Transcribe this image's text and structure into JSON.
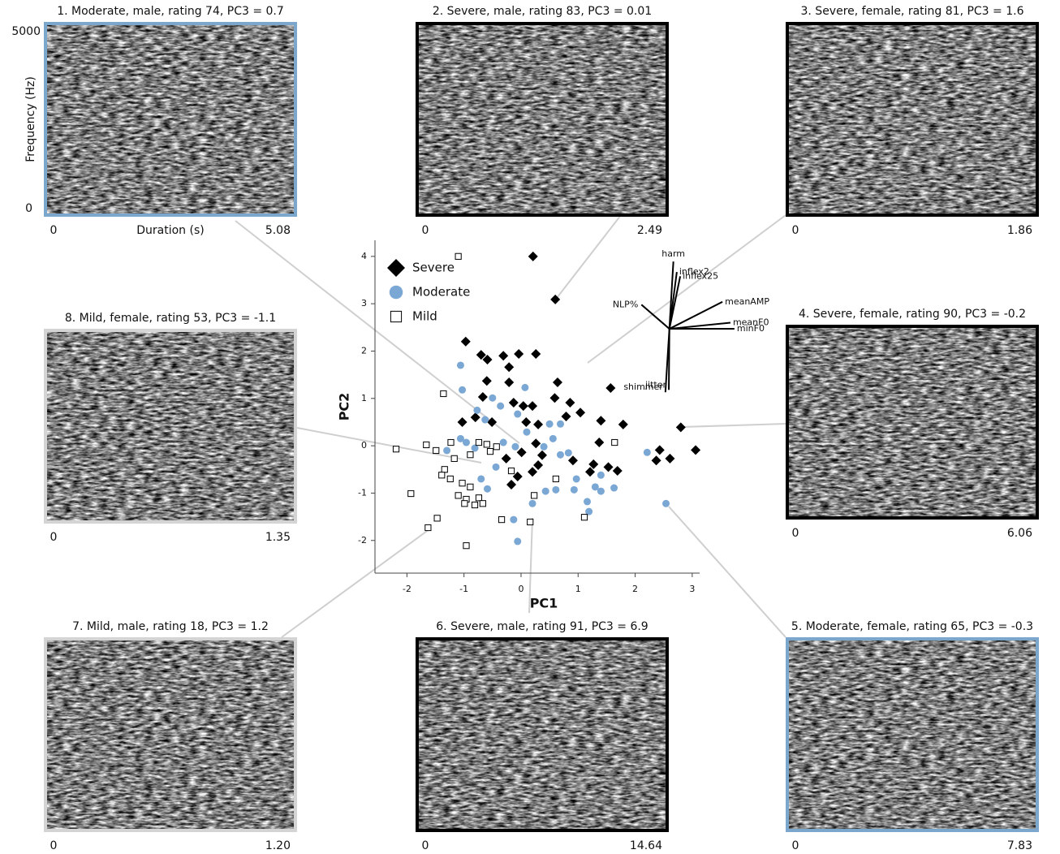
{
  "chart_data": {
    "type": "scatter",
    "xlabel": "PC1",
    "ylabel": "PC2",
    "xlim": [
      -2.56,
      3.13
    ],
    "ylim": [
      -2.69,
      4.34
    ],
    "xticks": [
      -2,
      -1,
      0,
      1,
      2,
      3
    ],
    "yticks": [
      -2,
      -1,
      0,
      1,
      2,
      3,
      4
    ],
    "legend": "upper left",
    "series": [
      {
        "name": "Severe",
        "color": "#000000",
        "marker": "diamond",
        "x": [
          0.21,
          0.6,
          -0.97,
          -0.7,
          -0.59,
          -0.31,
          -0.04,
          0.26,
          -0.21,
          -0.6,
          -0.21,
          0.64,
          -0.67,
          -0.13,
          0.04,
          0.2,
          0.59,
          0.86,
          1.57,
          1.04,
          0.79,
          -1.03,
          -0.8,
          -0.51,
          0.09,
          0.3,
          1.4,
          1.79,
          2.8,
          1.37,
          0.26,
          0.01,
          0.37,
          -0.26,
          0.91,
          1.27,
          1.53,
          1.69,
          1.21,
          0.3,
          0.2,
          -0.06,
          -0.17,
          2.43,
          2.37,
          2.61,
          3.06
        ],
        "y": [
          4.0,
          3.09,
          2.2,
          1.92,
          1.82,
          1.9,
          1.94,
          1.94,
          1.66,
          1.37,
          1.34,
          1.34,
          1.03,
          0.91,
          0.84,
          0.84,
          1.01,
          0.91,
          1.22,
          0.7,
          0.62,
          0.5,
          0.6,
          0.5,
          0.5,
          0.45,
          0.53,
          0.45,
          0.39,
          0.07,
          0.05,
          -0.14,
          -0.2,
          -0.27,
          -0.31,
          -0.39,
          -0.45,
          -0.53,
          -0.55,
          -0.41,
          -0.55,
          -0.65,
          -0.82,
          -0.09,
          -0.31,
          -0.27,
          -0.09
        ]
      },
      {
        "name": "Moderate",
        "color": "#7ba7d4",
        "marker": "circle",
        "x": [
          -1.06,
          -1.03,
          0.07,
          -0.5,
          -0.36,
          -0.06,
          -0.77,
          -0.63,
          -0.96,
          -1.3,
          -1.06,
          -0.81,
          -0.31,
          -0.1,
          0.5,
          0.69,
          0.56,
          0.69,
          0.4,
          0.83,
          1.4,
          1.63,
          1.4,
          1.3,
          0.97,
          0.93,
          1.16,
          1.19,
          0.61,
          0.43,
          0.2,
          -0.13,
          -0.06,
          -0.59,
          -0.7,
          -0.44,
          2.21,
          2.54,
          0.1
        ],
        "y": [
          1.7,
          1.18,
          1.23,
          1.01,
          0.84,
          0.67,
          0.75,
          0.55,
          0.07,
          -0.1,
          0.15,
          -0.05,
          0.07,
          -0.02,
          0.46,
          0.46,
          0.15,
          -0.19,
          -0.02,
          -0.15,
          -0.62,
          -0.89,
          -0.96,
          -0.87,
          -0.7,
          -0.93,
          -1.18,
          -1.39,
          -0.93,
          -0.96,
          -1.22,
          -1.56,
          -2.02,
          -0.91,
          -0.7,
          -0.45,
          -0.14,
          -1.22,
          0.29
        ]
      },
      {
        "name": "Mild",
        "color": "#000000",
        "marker": "square",
        "x": [
          -1.1,
          -1.36,
          -2.19,
          -1.66,
          -1.49,
          -1.23,
          -0.74,
          -0.6,
          -0.43,
          -0.54,
          -0.89,
          -1.17,
          -1.34,
          -1.39,
          -1.24,
          -1.03,
          -0.89,
          -1.1,
          -0.96,
          -0.74,
          -0.99,
          -0.81,
          -0.67,
          -1.93,
          -1.47,
          -1.63,
          -0.96,
          -0.34,
          0.16,
          0.23,
          0.61,
          1.11,
          1.64,
          -0.17
        ],
        "y": [
          4.0,
          1.1,
          -0.07,
          0.02,
          -0.1,
          0.07,
          0.07,
          0.03,
          -0.02,
          -0.12,
          -0.19,
          -0.27,
          -0.5,
          -0.62,
          -0.7,
          -0.79,
          -0.87,
          -1.05,
          -1.13,
          -1.1,
          -1.22,
          -1.25,
          -1.22,
          -1.01,
          -1.53,
          -1.73,
          -2.11,
          -1.56,
          -1.61,
          -1.05,
          -0.7,
          -1.51,
          0.07,
          -0.53
        ]
      }
    ],
    "loadings": {
      "origin": [
        2.6,
        2.47
      ],
      "vectors": [
        {
          "name": "harm",
          "x": 2.67,
          "y": 3.89
        },
        {
          "name": "inflex2",
          "x": 2.73,
          "y": 3.67
        },
        {
          "name": "inflex25",
          "x": 2.79,
          "y": 3.58
        },
        {
          "name": "meanAMP",
          "x": 3.53,
          "y": 3.04
        },
        {
          "name": "meanF0",
          "x": 3.67,
          "y": 2.6
        },
        {
          "name": "minF0",
          "x": 3.74,
          "y": 2.47
        },
        {
          "name": "NLP%",
          "x": 2.11,
          "y": 2.98
        },
        {
          "name": "shimmer",
          "x": 2.53,
          "y": 1.13
        },
        {
          "name": "jitter",
          "x": 2.59,
          "y": 1.18
        }
      ]
    }
  },
  "panels": [
    {
      "title": "1. Moderate, male, rating 74, PC3 = 0.7",
      "start": "0",
      "end": "5.08",
      "border": "#7ba7cc",
      "ylabel": "Frequency (Hz)",
      "ytop": "5000",
      "ybottom": "0",
      "xlabel": "Duration (s)"
    },
    {
      "title": "2. Severe, male, rating 83, PC3 = 0.01",
      "start": "0",
      "end": "2.49",
      "border": "#000000"
    },
    {
      "title": "3. Severe, female, rating 81, PC3 = 1.6",
      "start": "0",
      "end": "1.86",
      "border": "#000000"
    },
    {
      "title": "4. Severe, female, rating 90, PC3 = -0.2",
      "start": "0",
      "end": "6.06",
      "border": "#000000"
    },
    {
      "title": "5. Moderate, female, rating 65, PC3 = -0.3",
      "start": "0",
      "end": "7.83",
      "border": "#7ba7cc"
    },
    {
      "title": "6. Severe, male, rating 91, PC3 = 6.9",
      "start": "0",
      "end": "14.64",
      "border": "#000000"
    },
    {
      "title": "7. Mild, male, rating 18, PC3 = 1.2",
      "start": "0",
      "end": "1.20",
      "border": "#d4d4d4"
    },
    {
      "title": "8. Mild, female, rating 53, PC3 = -1.1",
      "start": "0",
      "end": "1.35",
      "border": "#d4d4d4"
    }
  ]
}
